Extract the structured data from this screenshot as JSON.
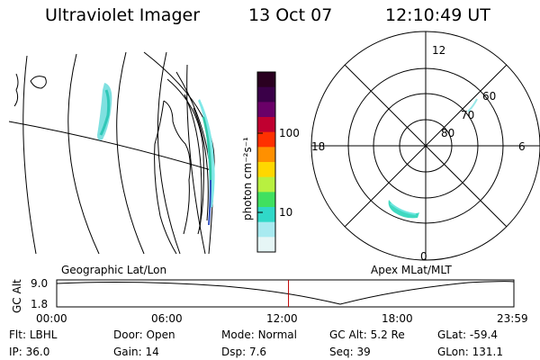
{
  "header": {
    "title": "Ultraviolet Imager",
    "date": "13 Oct 07",
    "time": "12:10:49 UT"
  },
  "colorbar": {
    "label": "photon cm⁻²s⁻¹",
    "ticks": [
      "100",
      "10"
    ],
    "colors": [
      "#2a0020",
      "#3a0048",
      "#6a0068",
      "#c00030",
      "#ff3000",
      "#ff9000",
      "#ffd700",
      "#b8f040",
      "#40e060",
      "#30d8c8",
      "#a8eaf0",
      "#e6f6f6"
    ]
  },
  "polar": {
    "mlt_labels": [
      "12",
      "18",
      "6",
      "0"
    ],
    "lat_labels": [
      "60",
      "70",
      "80"
    ]
  },
  "timeline": {
    "ylabel": "GC Alt",
    "yticks": [
      "9.0",
      "1.8"
    ],
    "left_title": "Geographic Lat/Lon",
    "right_title": "Apex MLat/MLT",
    "xticks": [
      "00:00",
      "06:00",
      "12:00",
      "18:00",
      "23:59"
    ],
    "current_time_fraction": 0.507
  },
  "info": {
    "row1": [
      {
        "key": "Flt:",
        "val": "LBHL"
      },
      {
        "key": "Door:",
        "val": "Open"
      },
      {
        "key": "Mode:",
        "val": "Normal"
      },
      {
        "key": "GC Alt:",
        "val": "5.2 Re"
      },
      {
        "key": "GLat:",
        "val": "-59.4"
      }
    ],
    "row2": [
      {
        "key": "IP:",
        "val": "36.0"
      },
      {
        "key": "Gain:",
        "val": "14"
      },
      {
        "key": "Dsp:",
        "val": "7.6"
      },
      {
        "key": "Seq:",
        "val": "39"
      },
      {
        "key": "GLon:",
        "val": "131.1"
      }
    ]
  }
}
